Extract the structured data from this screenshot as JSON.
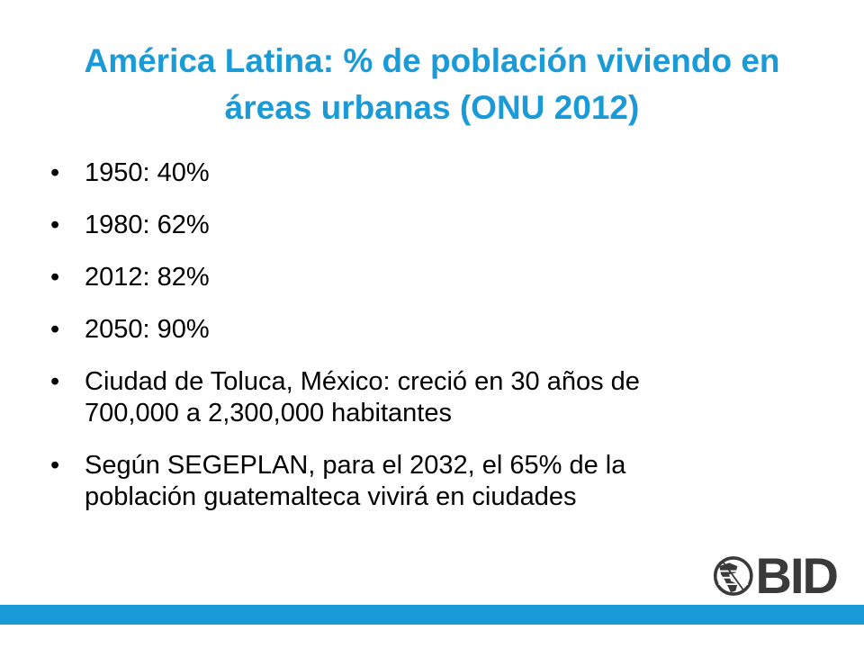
{
  "slide": {
    "title_line1": "América Latina: % de población viviendo en",
    "title_line2": "áreas urbanas (ONU 2012)",
    "title_color": "#1a9ad6",
    "bullet_marker": "•",
    "bullets": [
      {
        "lines": [
          "1950: 40%"
        ]
      },
      {
        "lines": [
          "1980: 62%"
        ]
      },
      {
        "lines": [
          "2012: 82%"
        ]
      },
      {
        "lines": [
          "2050: 90%"
        ]
      },
      {
        "lines": [
          "Ciudad de Toluca, México: creció en 30 años de",
          "700,000 a 2,300,000 habitantes"
        ]
      },
      {
        "lines": [
          "Según SEGEPLAN, para el 2032, el 65% de la",
          "población guatemalteca vivirá en ciudades"
        ]
      }
    ]
  },
  "logo": {
    "text": "BID",
    "icon": "globe-icon",
    "color": "#3a3a3a"
  },
  "footer": {
    "bar_color": "#1a9ad6"
  }
}
